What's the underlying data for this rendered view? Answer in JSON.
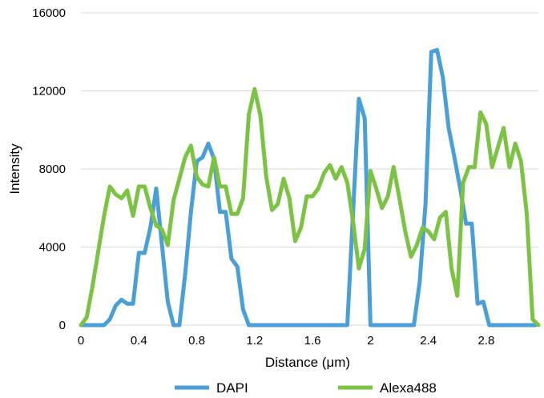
{
  "chart_data": {
    "type": "line",
    "title": "",
    "xlabel": "Distance (μm)",
    "ylabel": "Intensity",
    "xlim": [
      0,
      3.16
    ],
    "ylim": [
      0,
      16000
    ],
    "x_ticks": [
      0,
      0.4,
      0.8,
      1.2,
      1.6,
      2,
      2.4,
      2.8
    ],
    "x_tick_labels": [
      "0",
      "0.4",
      "0.8",
      "1.2",
      "1.6",
      "2",
      "2.4",
      "2.8"
    ],
    "y_ticks": [
      0,
      4000,
      8000,
      12000,
      16000
    ],
    "y_tick_labels": [
      "0",
      "4000",
      "8000",
      "12000",
      "16000"
    ],
    "grid": true,
    "legend_position": "bottom",
    "series": [
      {
        "name": "DAPI",
        "color": "#4a9fd8",
        "x": [
          0,
          0.04,
          0.08,
          0.12,
          0.16,
          0.2,
          0.24,
          0.28,
          0.32,
          0.36,
          0.4,
          0.44,
          0.48,
          0.52,
          0.56,
          0.6,
          0.64,
          0.68,
          0.72,
          0.76,
          0.8,
          0.84,
          0.88,
          0.92,
          0.96,
          1.0,
          1.04,
          1.08,
          1.12,
          1.16,
          1.2,
          1.6,
          1.8,
          1.84,
          1.88,
          1.92,
          1.96,
          2.0,
          2.04,
          2.08,
          2.3,
          2.34,
          2.38,
          2.42,
          2.46,
          2.5,
          2.54,
          2.58,
          2.62,
          2.66,
          2.7,
          2.74,
          2.78,
          2.82,
          2.86,
          2.9,
          3.14
        ],
        "values": [
          0,
          0,
          0,
          0,
          0,
          300,
          1000,
          1300,
          1100,
          1100,
          3700,
          3700,
          5000,
          7000,
          4100,
          1200,
          0,
          0,
          2600,
          5800,
          8400,
          8600,
          9300,
          8500,
          5800,
          5800,
          3400,
          3000,
          800,
          0,
          0,
          0,
          0,
          0,
          5800,
          11600,
          10600,
          0,
          0,
          0,
          0,
          2200,
          6200,
          14000,
          14100,
          12700,
          10100,
          8600,
          7000,
          5200,
          5200,
          1100,
          1200,
          0,
          0,
          0,
          0
        ]
      },
      {
        "name": "Alexa488",
        "color": "#7cc243",
        "x": [
          0,
          0.04,
          0.08,
          0.12,
          0.16,
          0.2,
          0.24,
          0.28,
          0.32,
          0.36,
          0.4,
          0.44,
          0.48,
          0.52,
          0.56,
          0.6,
          0.64,
          0.68,
          0.72,
          0.76,
          0.8,
          0.84,
          0.88,
          0.92,
          0.96,
          1.0,
          1.04,
          1.08,
          1.12,
          1.16,
          1.2,
          1.24,
          1.28,
          1.32,
          1.36,
          1.4,
          1.44,
          1.48,
          1.52,
          1.56,
          1.6,
          1.64,
          1.68,
          1.72,
          1.76,
          1.8,
          1.84,
          1.88,
          1.92,
          1.96,
          2.0,
          2.04,
          2.08,
          2.12,
          2.16,
          2.2,
          2.24,
          2.28,
          2.32,
          2.36,
          2.4,
          2.44,
          2.48,
          2.52,
          2.56,
          2.6,
          2.64,
          2.68,
          2.72,
          2.76,
          2.8,
          2.84,
          2.88,
          2.92,
          2.96,
          3.0,
          3.04,
          3.08,
          3.12,
          3.16
        ],
        "values": [
          0,
          400,
          2000,
          3800,
          5600,
          7100,
          6700,
          6500,
          6900,
          5600,
          7100,
          7100,
          6000,
          5100,
          4900,
          4100,
          6400,
          7500,
          8600,
          9200,
          7600,
          7200,
          7100,
          8600,
          7100,
          7100,
          5700,
          5700,
          6500,
          10800,
          12100,
          10700,
          7600,
          5900,
          6200,
          7500,
          6500,
          4300,
          5000,
          6600,
          6600,
          7000,
          7800,
          8200,
          7500,
          8100,
          7300,
          5300,
          2900,
          3900,
          7900,
          7000,
          6000,
          6600,
          8100,
          6500,
          4800,
          3500,
          4100,
          5000,
          4800,
          4400,
          5500,
          5800,
          2900,
          1500,
          7300,
          8100,
          8100,
          10900,
          10300,
          8100,
          9100,
          10100,
          8100,
          9300,
          8400,
          5700,
          300,
          0
        ]
      }
    ]
  }
}
